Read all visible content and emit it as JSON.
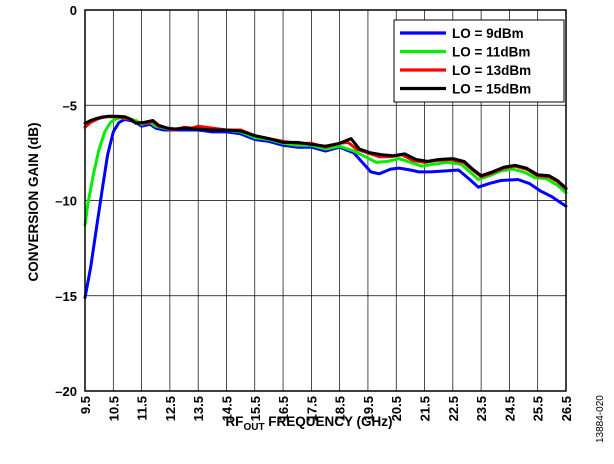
{
  "chart_data": {
    "type": "line",
    "title": "",
    "xlabel": {
      "main": "RF",
      "sub": "OUT",
      "rest": " FREQUENCY (GHz)"
    },
    "ylabel": "CONVERSION GAIN (dB)",
    "xlim": [
      9.5,
      26.5
    ],
    "ylim": [
      -20,
      0
    ],
    "x_ticks": [
      "9.5",
      "10.5",
      "11.5",
      "12.5",
      "13.5",
      "14.5",
      "15.5",
      "16.5",
      "17.5",
      "18.5",
      "19.5",
      "20.5",
      "21.5",
      "22.5",
      "23.5",
      "24.5",
      "25.5",
      "26.5"
    ],
    "y_ticks": [
      {
        "value": 0,
        "label": "0"
      },
      {
        "value": -5,
        "label": "–5"
      },
      {
        "value": -10,
        "label": "–10"
      },
      {
        "value": -15,
        "label": "–15"
      },
      {
        "value": -20,
        "label": "–20"
      }
    ],
    "grid": true,
    "legend_position": "top-right",
    "series": [
      {
        "name": "LO = 9dBm",
        "color": "#0000ff",
        "points": [
          [
            9.5,
            -15.1
          ],
          [
            9.7,
            -13.5
          ],
          [
            9.9,
            -11.5
          ],
          [
            10.1,
            -9.5
          ],
          [
            10.3,
            -7.6
          ],
          [
            10.5,
            -6.4
          ],
          [
            10.7,
            -5.9
          ],
          [
            10.9,
            -5.75
          ],
          [
            11.1,
            -5.8
          ],
          [
            11.3,
            -5.9
          ],
          [
            11.5,
            -6.1
          ],
          [
            11.8,
            -6.0
          ],
          [
            12.0,
            -6.2
          ],
          [
            12.3,
            -6.3
          ],
          [
            12.5,
            -6.3
          ],
          [
            13.0,
            -6.3
          ],
          [
            13.5,
            -6.3
          ],
          [
            14.0,
            -6.4
          ],
          [
            14.5,
            -6.4
          ],
          [
            15.0,
            -6.5
          ],
          [
            15.5,
            -6.8
          ],
          [
            16.0,
            -6.9
          ],
          [
            16.5,
            -7.1
          ],
          [
            17.0,
            -7.2
          ],
          [
            17.5,
            -7.2
          ],
          [
            18.0,
            -7.4
          ],
          [
            18.5,
            -7.2
          ],
          [
            19.0,
            -7.5
          ],
          [
            19.3,
            -8.0
          ],
          [
            19.6,
            -8.5
          ],
          [
            19.9,
            -8.6
          ],
          [
            20.3,
            -8.35
          ],
          [
            20.6,
            -8.3
          ],
          [
            21.0,
            -8.4
          ],
          [
            21.3,
            -8.5
          ],
          [
            21.7,
            -8.5
          ],
          [
            22.2,
            -8.45
          ],
          [
            22.7,
            -8.4
          ],
          [
            23.1,
            -8.9
          ],
          [
            23.4,
            -9.3
          ],
          [
            23.8,
            -9.1
          ],
          [
            24.2,
            -8.95
          ],
          [
            24.8,
            -8.9
          ],
          [
            25.2,
            -9.1
          ],
          [
            25.6,
            -9.5
          ],
          [
            26.0,
            -9.8
          ],
          [
            26.5,
            -10.3
          ]
        ]
      },
      {
        "name": "LO = 11dBm",
        "color": "#00ee00",
        "points": [
          [
            9.5,
            -11.3
          ],
          [
            9.6,
            -10.2
          ],
          [
            9.8,
            -8.6
          ],
          [
            10.0,
            -7.3
          ],
          [
            10.2,
            -6.4
          ],
          [
            10.4,
            -5.9
          ],
          [
            10.6,
            -5.7
          ],
          [
            10.8,
            -5.65
          ],
          [
            11.0,
            -5.7
          ],
          [
            11.3,
            -5.8
          ],
          [
            11.5,
            -6.0
          ],
          [
            11.8,
            -5.9
          ],
          [
            12.0,
            -6.1
          ],
          [
            12.3,
            -6.2
          ],
          [
            12.5,
            -6.25
          ],
          [
            13.0,
            -6.2
          ],
          [
            13.5,
            -6.2
          ],
          [
            14.0,
            -6.3
          ],
          [
            14.5,
            -6.3
          ],
          [
            15.0,
            -6.4
          ],
          [
            15.5,
            -6.7
          ],
          [
            16.0,
            -6.8
          ],
          [
            16.5,
            -7.0
          ],
          [
            17.0,
            -7.1
          ],
          [
            17.5,
            -7.1
          ],
          [
            18.0,
            -7.3
          ],
          [
            18.5,
            -7.15
          ],
          [
            19.0,
            -7.4
          ],
          [
            19.4,
            -7.7
          ],
          [
            19.8,
            -8.0
          ],
          [
            20.2,
            -7.95
          ],
          [
            20.6,
            -7.8
          ],
          [
            21.0,
            -8.0
          ],
          [
            21.4,
            -8.2
          ],
          [
            21.8,
            -8.1
          ],
          [
            22.3,
            -8.0
          ],
          [
            22.8,
            -8.1
          ],
          [
            23.1,
            -8.5
          ],
          [
            23.4,
            -8.9
          ],
          [
            23.8,
            -8.7
          ],
          [
            24.2,
            -8.45
          ],
          [
            24.6,
            -8.35
          ],
          [
            25.0,
            -8.5
          ],
          [
            25.4,
            -8.8
          ],
          [
            25.8,
            -8.85
          ],
          [
            26.2,
            -9.2
          ],
          [
            26.5,
            -9.6
          ]
        ]
      },
      {
        "name": "LO = 13dBm",
        "color": "#ff0000",
        "points": [
          [
            9.5,
            -6.15
          ],
          [
            9.7,
            -5.9
          ],
          [
            9.9,
            -5.75
          ],
          [
            10.1,
            -5.65
          ],
          [
            10.3,
            -5.6
          ],
          [
            10.6,
            -5.6
          ],
          [
            10.9,
            -5.65
          ],
          [
            11.1,
            -5.75
          ],
          [
            11.3,
            -5.9
          ],
          [
            11.6,
            -5.95
          ],
          [
            11.9,
            -5.85
          ],
          [
            12.1,
            -6.1
          ],
          [
            12.4,
            -6.2
          ],
          [
            12.7,
            -6.3
          ],
          [
            13.0,
            -6.15
          ],
          [
            13.3,
            -6.2
          ],
          [
            13.5,
            -6.1
          ],
          [
            14.0,
            -6.2
          ],
          [
            14.5,
            -6.3
          ],
          [
            15.0,
            -6.3
          ],
          [
            15.5,
            -6.6
          ],
          [
            16.0,
            -6.75
          ],
          [
            16.5,
            -6.9
          ],
          [
            17.0,
            -7.0
          ],
          [
            17.5,
            -7.0
          ],
          [
            18.0,
            -7.2
          ],
          [
            18.5,
            -7.0
          ],
          [
            18.8,
            -6.95
          ],
          [
            19.1,
            -7.3
          ],
          [
            19.5,
            -7.5
          ],
          [
            19.9,
            -7.7
          ],
          [
            20.3,
            -7.7
          ],
          [
            20.7,
            -7.6
          ],
          [
            21.1,
            -7.9
          ],
          [
            21.5,
            -8.0
          ],
          [
            21.9,
            -7.9
          ],
          [
            22.4,
            -7.85
          ],
          [
            22.9,
            -8.0
          ],
          [
            23.2,
            -8.4
          ],
          [
            23.5,
            -8.75
          ],
          [
            23.9,
            -8.55
          ],
          [
            24.3,
            -8.3
          ],
          [
            24.7,
            -8.2
          ],
          [
            25.1,
            -8.35
          ],
          [
            25.5,
            -8.7
          ],
          [
            25.9,
            -8.75
          ],
          [
            26.2,
            -9.0
          ],
          [
            26.5,
            -9.4
          ]
        ]
      },
      {
        "name": "LO = 15dBm",
        "color": "#000000",
        "points": [
          [
            9.5,
            -5.95
          ],
          [
            9.7,
            -5.8
          ],
          [
            9.9,
            -5.7
          ],
          [
            10.1,
            -5.62
          ],
          [
            10.3,
            -5.58
          ],
          [
            10.6,
            -5.58
          ],
          [
            10.9,
            -5.6
          ],
          [
            11.1,
            -5.72
          ],
          [
            11.3,
            -5.95
          ],
          [
            11.6,
            -5.9
          ],
          [
            11.9,
            -5.8
          ],
          [
            12.1,
            -6.05
          ],
          [
            12.4,
            -6.2
          ],
          [
            12.7,
            -6.25
          ],
          [
            13.0,
            -6.2
          ],
          [
            13.5,
            -6.25
          ],
          [
            14.0,
            -6.3
          ],
          [
            14.5,
            -6.3
          ],
          [
            15.0,
            -6.35
          ],
          [
            15.5,
            -6.6
          ],
          [
            16.0,
            -6.75
          ],
          [
            16.5,
            -6.95
          ],
          [
            17.0,
            -6.95
          ],
          [
            17.5,
            -7.05
          ],
          [
            18.0,
            -7.15
          ],
          [
            18.5,
            -7.0
          ],
          [
            18.9,
            -6.75
          ],
          [
            19.2,
            -7.3
          ],
          [
            19.6,
            -7.5
          ],
          [
            20.0,
            -7.6
          ],
          [
            20.4,
            -7.65
          ],
          [
            20.8,
            -7.55
          ],
          [
            21.2,
            -7.85
          ],
          [
            21.6,
            -7.95
          ],
          [
            22.0,
            -7.85
          ],
          [
            22.5,
            -7.8
          ],
          [
            22.9,
            -7.95
          ],
          [
            23.2,
            -8.35
          ],
          [
            23.5,
            -8.7
          ],
          [
            23.9,
            -8.5
          ],
          [
            24.3,
            -8.25
          ],
          [
            24.7,
            -8.15
          ],
          [
            25.1,
            -8.3
          ],
          [
            25.5,
            -8.65
          ],
          [
            25.9,
            -8.7
          ],
          [
            26.2,
            -8.95
          ],
          [
            26.5,
            -9.35
          ]
        ]
      }
    ]
  },
  "figure_id": "13884-020"
}
